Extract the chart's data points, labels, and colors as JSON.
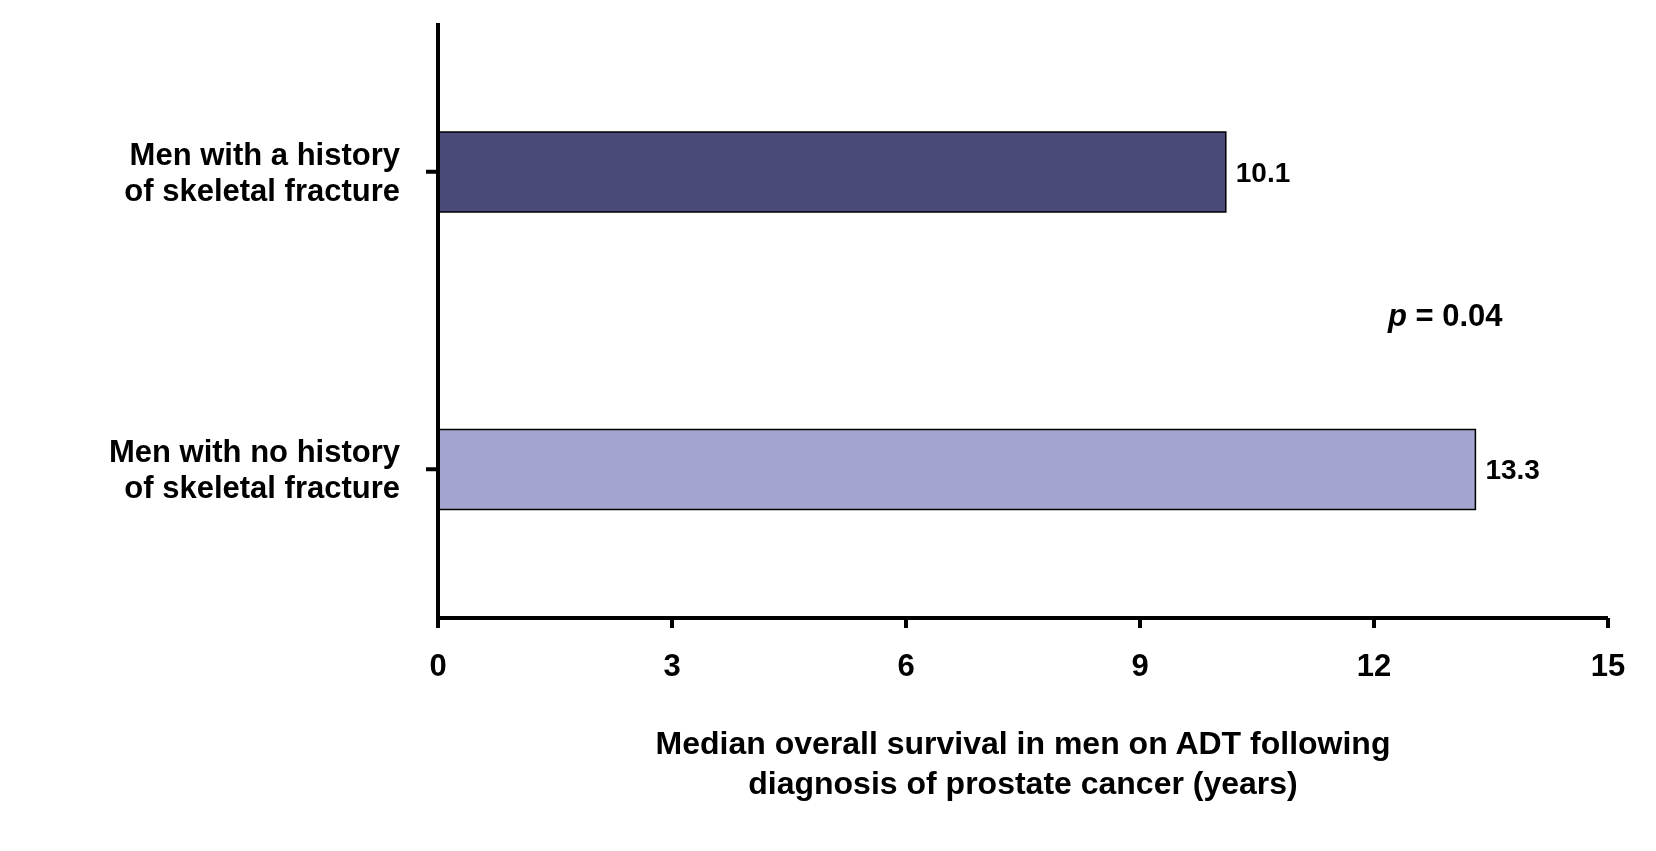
{
  "chart_data": {
    "type": "bar",
    "orientation": "horizontal",
    "categories": [
      "Men with a history of skeletal fracture",
      "Men with no history of skeletal fracture"
    ],
    "values": [
      10.1,
      13.3
    ],
    "colors": [
      "#4a4a78",
      "#a4a4d0"
    ],
    "xlim": [
      0,
      15
    ],
    "xticks": [
      0,
      3,
      6,
      9,
      12,
      15
    ],
    "xlabel": "Median overall survival in men on ADT following diagnosis of prostate cancer (years)",
    "annotations": [
      "p = 0.04"
    ],
    "data_labels": true,
    "grid": false,
    "legend": false
  }
}
